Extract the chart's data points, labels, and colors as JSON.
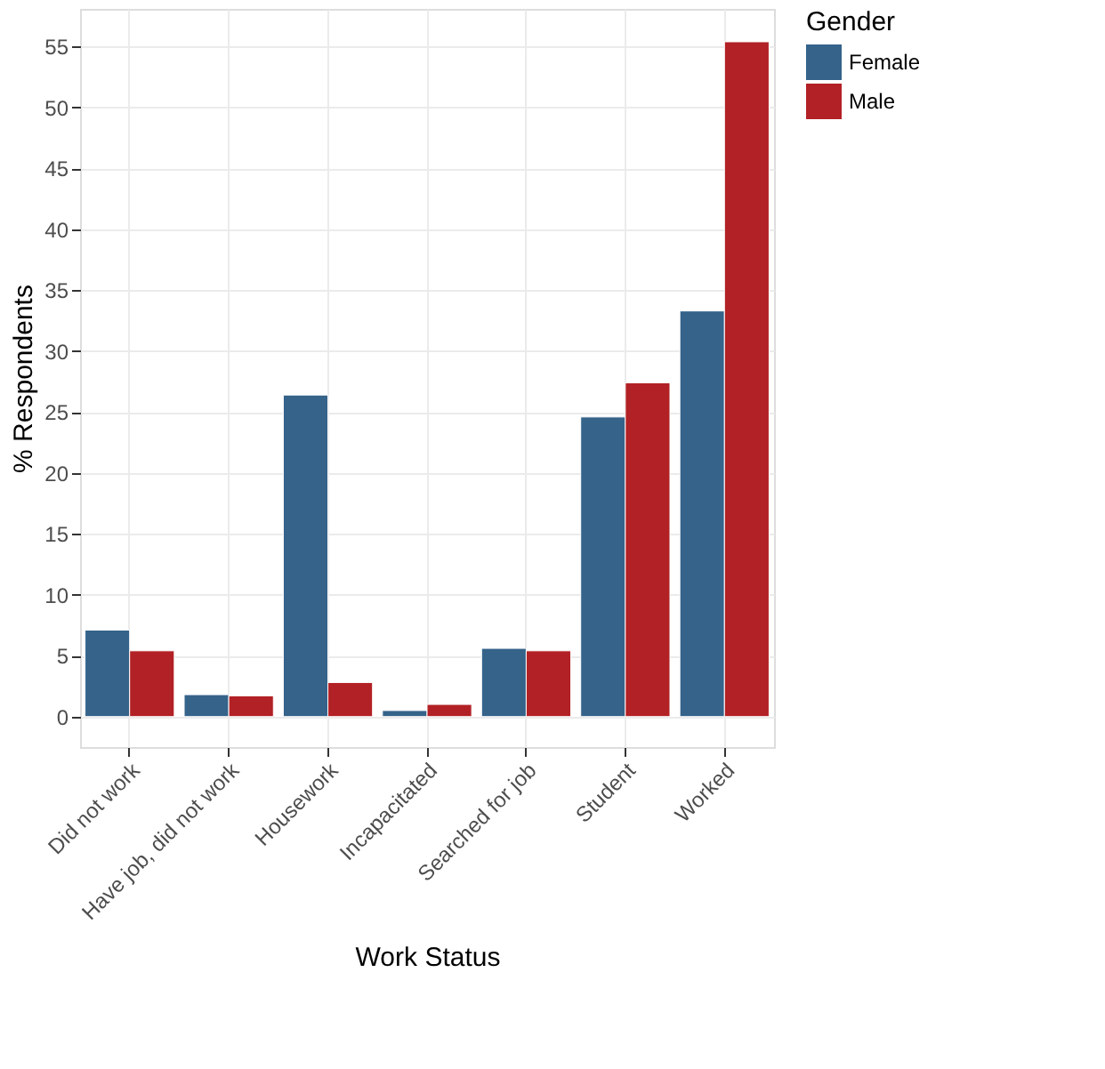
{
  "chart_data": {
    "type": "bar",
    "xlabel": "Work Status",
    "ylabel": "% Respondents",
    "legend_title": "Gender",
    "categories": [
      "Did not work",
      "Have job, did not work",
      "Housework",
      "Incapacitated",
      "Searched for job",
      "Student",
      "Worked"
    ],
    "series": [
      {
        "name": "Female",
        "color": "#35638a",
        "values": [
          7.1,
          1.8,
          26.4,
          0.5,
          5.6,
          24.6,
          33.3
        ]
      },
      {
        "name": "Male",
        "color": "#b22125",
        "values": [
          5.4,
          1.7,
          2.8,
          1.0,
          5.4,
          27.4,
          55.4
        ]
      }
    ],
    "ylim": [
      -2.5,
      58.1
    ],
    "yticks": [
      0,
      5,
      10,
      15,
      20,
      25,
      30,
      35,
      40,
      45,
      50,
      55
    ],
    "grid": true,
    "legend": "right"
  }
}
